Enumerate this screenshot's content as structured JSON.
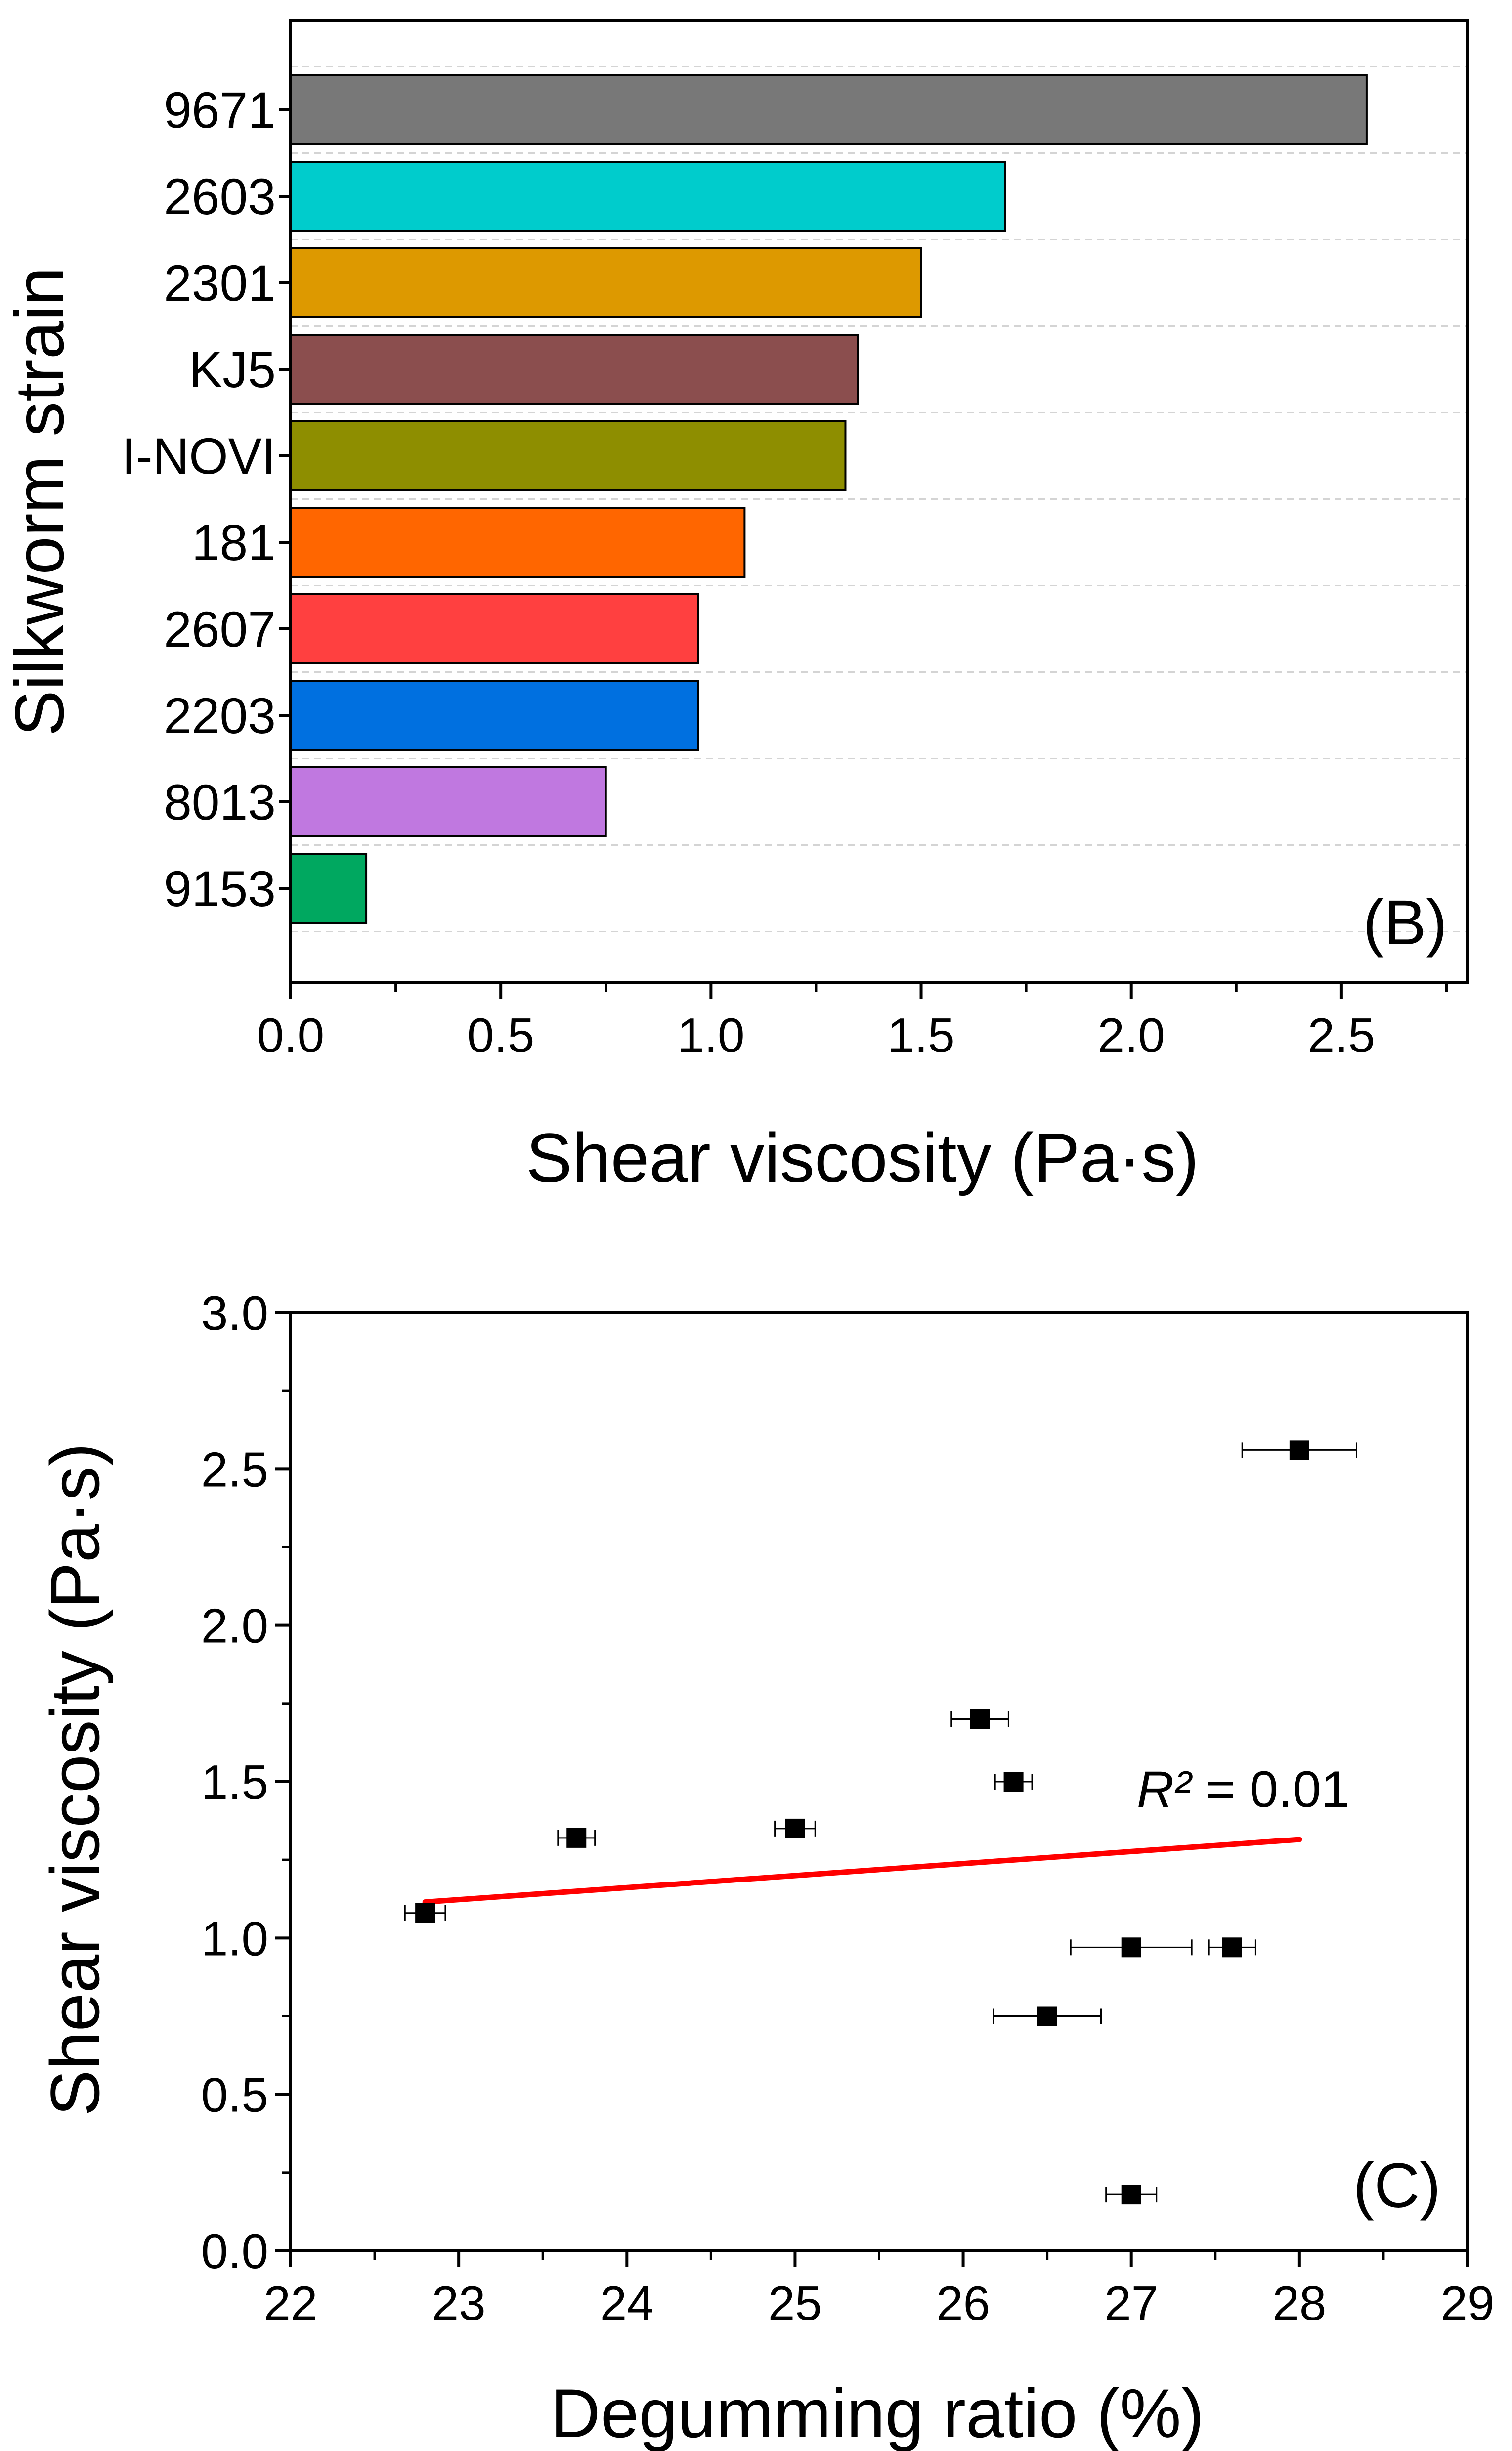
{
  "chart_data": [
    {
      "type": "bar",
      "orientation": "horizontal",
      "panel_label": "(B)",
      "xlabel": "Shear viscosity (Pa·s)",
      "ylabel": "Silkworm strain",
      "xlim": [
        0,
        2.8
      ],
      "xticks": [
        "0.0",
        "0.5",
        "1.0",
        "1.5",
        "2.0",
        "2.5"
      ],
      "xtick_values": [
        0,
        0.5,
        1.0,
        1.5,
        2.0,
        2.5
      ],
      "grid": "horizontal dashed",
      "categories": [
        "9671",
        "2603",
        "2301",
        "KJ5",
        "I-NOVI",
        "181",
        "2607",
        "2203",
        "8013",
        "9153"
      ],
      "values": [
        2.56,
        1.7,
        1.5,
        1.35,
        1.32,
        1.08,
        0.97,
        0.97,
        0.75,
        0.18
      ],
      "colors": [
        "#787878",
        "#00cccc",
        "#dd9900",
        "#8b4e4e",
        "#8e8e00",
        "#ff6600",
        "#ff4040",
        "#0070e0",
        "#c078e0",
        "#00a860"
      ]
    },
    {
      "type": "scatter",
      "panel_label": "(C)",
      "xlabel": "Degumming ratio (%)",
      "ylabel": "Shear viscosity (Pa·s)",
      "xlim": [
        22,
        29
      ],
      "ylim": [
        0,
        3
      ],
      "xticks": [
        "22",
        "23",
        "24",
        "25",
        "26",
        "27",
        "28",
        "29"
      ],
      "xtick_values": [
        22,
        23,
        24,
        25,
        26,
        27,
        28,
        29
      ],
      "yticks": [
        "0.0",
        "0.5",
        "1.0",
        "1.5",
        "2.0",
        "2.5",
        "3.0"
      ],
      "ytick_values": [
        0,
        0.5,
        1.0,
        1.5,
        2.0,
        2.5,
        3.0
      ],
      "grid": "off",
      "points": [
        {
          "x": 28.0,
          "y": 2.56,
          "xerr": 0.34
        },
        {
          "x": 26.1,
          "y": 1.7,
          "xerr": 0.17
        },
        {
          "x": 26.3,
          "y": 1.5,
          "xerr": 0.11
        },
        {
          "x": 25.0,
          "y": 1.35,
          "xerr": 0.12
        },
        {
          "x": 23.7,
          "y": 1.32,
          "xerr": 0.11
        },
        {
          "x": 22.8,
          "y": 1.08,
          "xerr": 0.12
        },
        {
          "x": 27.0,
          "y": 0.97,
          "xerr": 0.36
        },
        {
          "x": 27.6,
          "y": 0.97,
          "xerr": 0.14
        },
        {
          "x": 26.5,
          "y": 0.75,
          "xerr": 0.32
        },
        {
          "x": 27.0,
          "y": 0.18,
          "xerr": 0.15
        }
      ],
      "fit_line": {
        "x": [
          22.8,
          28.0
        ],
        "y": [
          1.115,
          1.315
        ],
        "color": "#ff0000"
      },
      "annotation_symbol": "R²",
      "annotation_value": " = 0.01",
      "marker_color": "#000000"
    }
  ]
}
